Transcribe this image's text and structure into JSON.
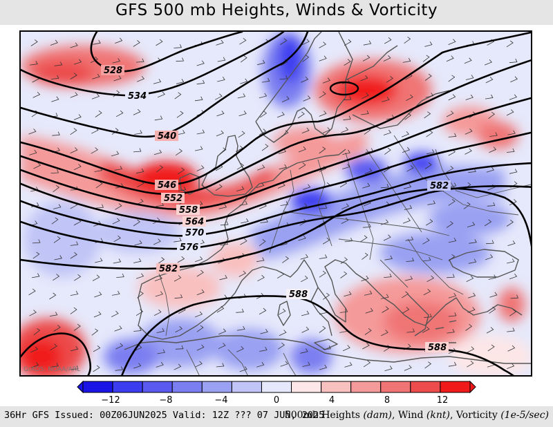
{
  "title": "GFS 500 mb Heights, Winds & Vorticity",
  "credit": "GrADS: NOAA/ARL",
  "footer": {
    "left": "36Hr GFS Issued: 00Z06JUN2025 Valid: 12Z ??? 07 JUN, 2025",
    "right_main": "500mb Heights ",
    "right_unit1": "(dam)",
    "right_mid1": ", Wind ",
    "right_unit2": "(knt)",
    "right_mid2": ", Vorticity ",
    "right_unit3": "(1e-5/sec)"
  },
  "colorbar": {
    "colors": [
      "#1a14e6",
      "#3c3cf0",
      "#5a5af0",
      "#7a7ef0",
      "#9aa0f2",
      "#c0c4f6",
      "#e6e8fb",
      "#fde6e6",
      "#f9c0c0",
      "#f59a9a",
      "#f07474",
      "#ec4c4c",
      "#f01a1a"
    ],
    "tick_labels": [
      "−12",
      "−8",
      "−4",
      "0",
      "4",
      "8",
      "12"
    ],
    "tick_values": [
      -12,
      -8,
      -4,
      0,
      4,
      8,
      12
    ],
    "min": -14,
    "max": 14
  },
  "contour_labels": [
    "528",
    "534",
    "540",
    "546",
    "552",
    "558",
    "564",
    "570",
    "576",
    "582",
    "588",
    "582",
    "588"
  ],
  "colors": {
    "contour": "#000000",
    "coastline": "#555555",
    "positive_vorticity": "#e8262a",
    "negative_vorticity": "#2a3bd8"
  }
}
